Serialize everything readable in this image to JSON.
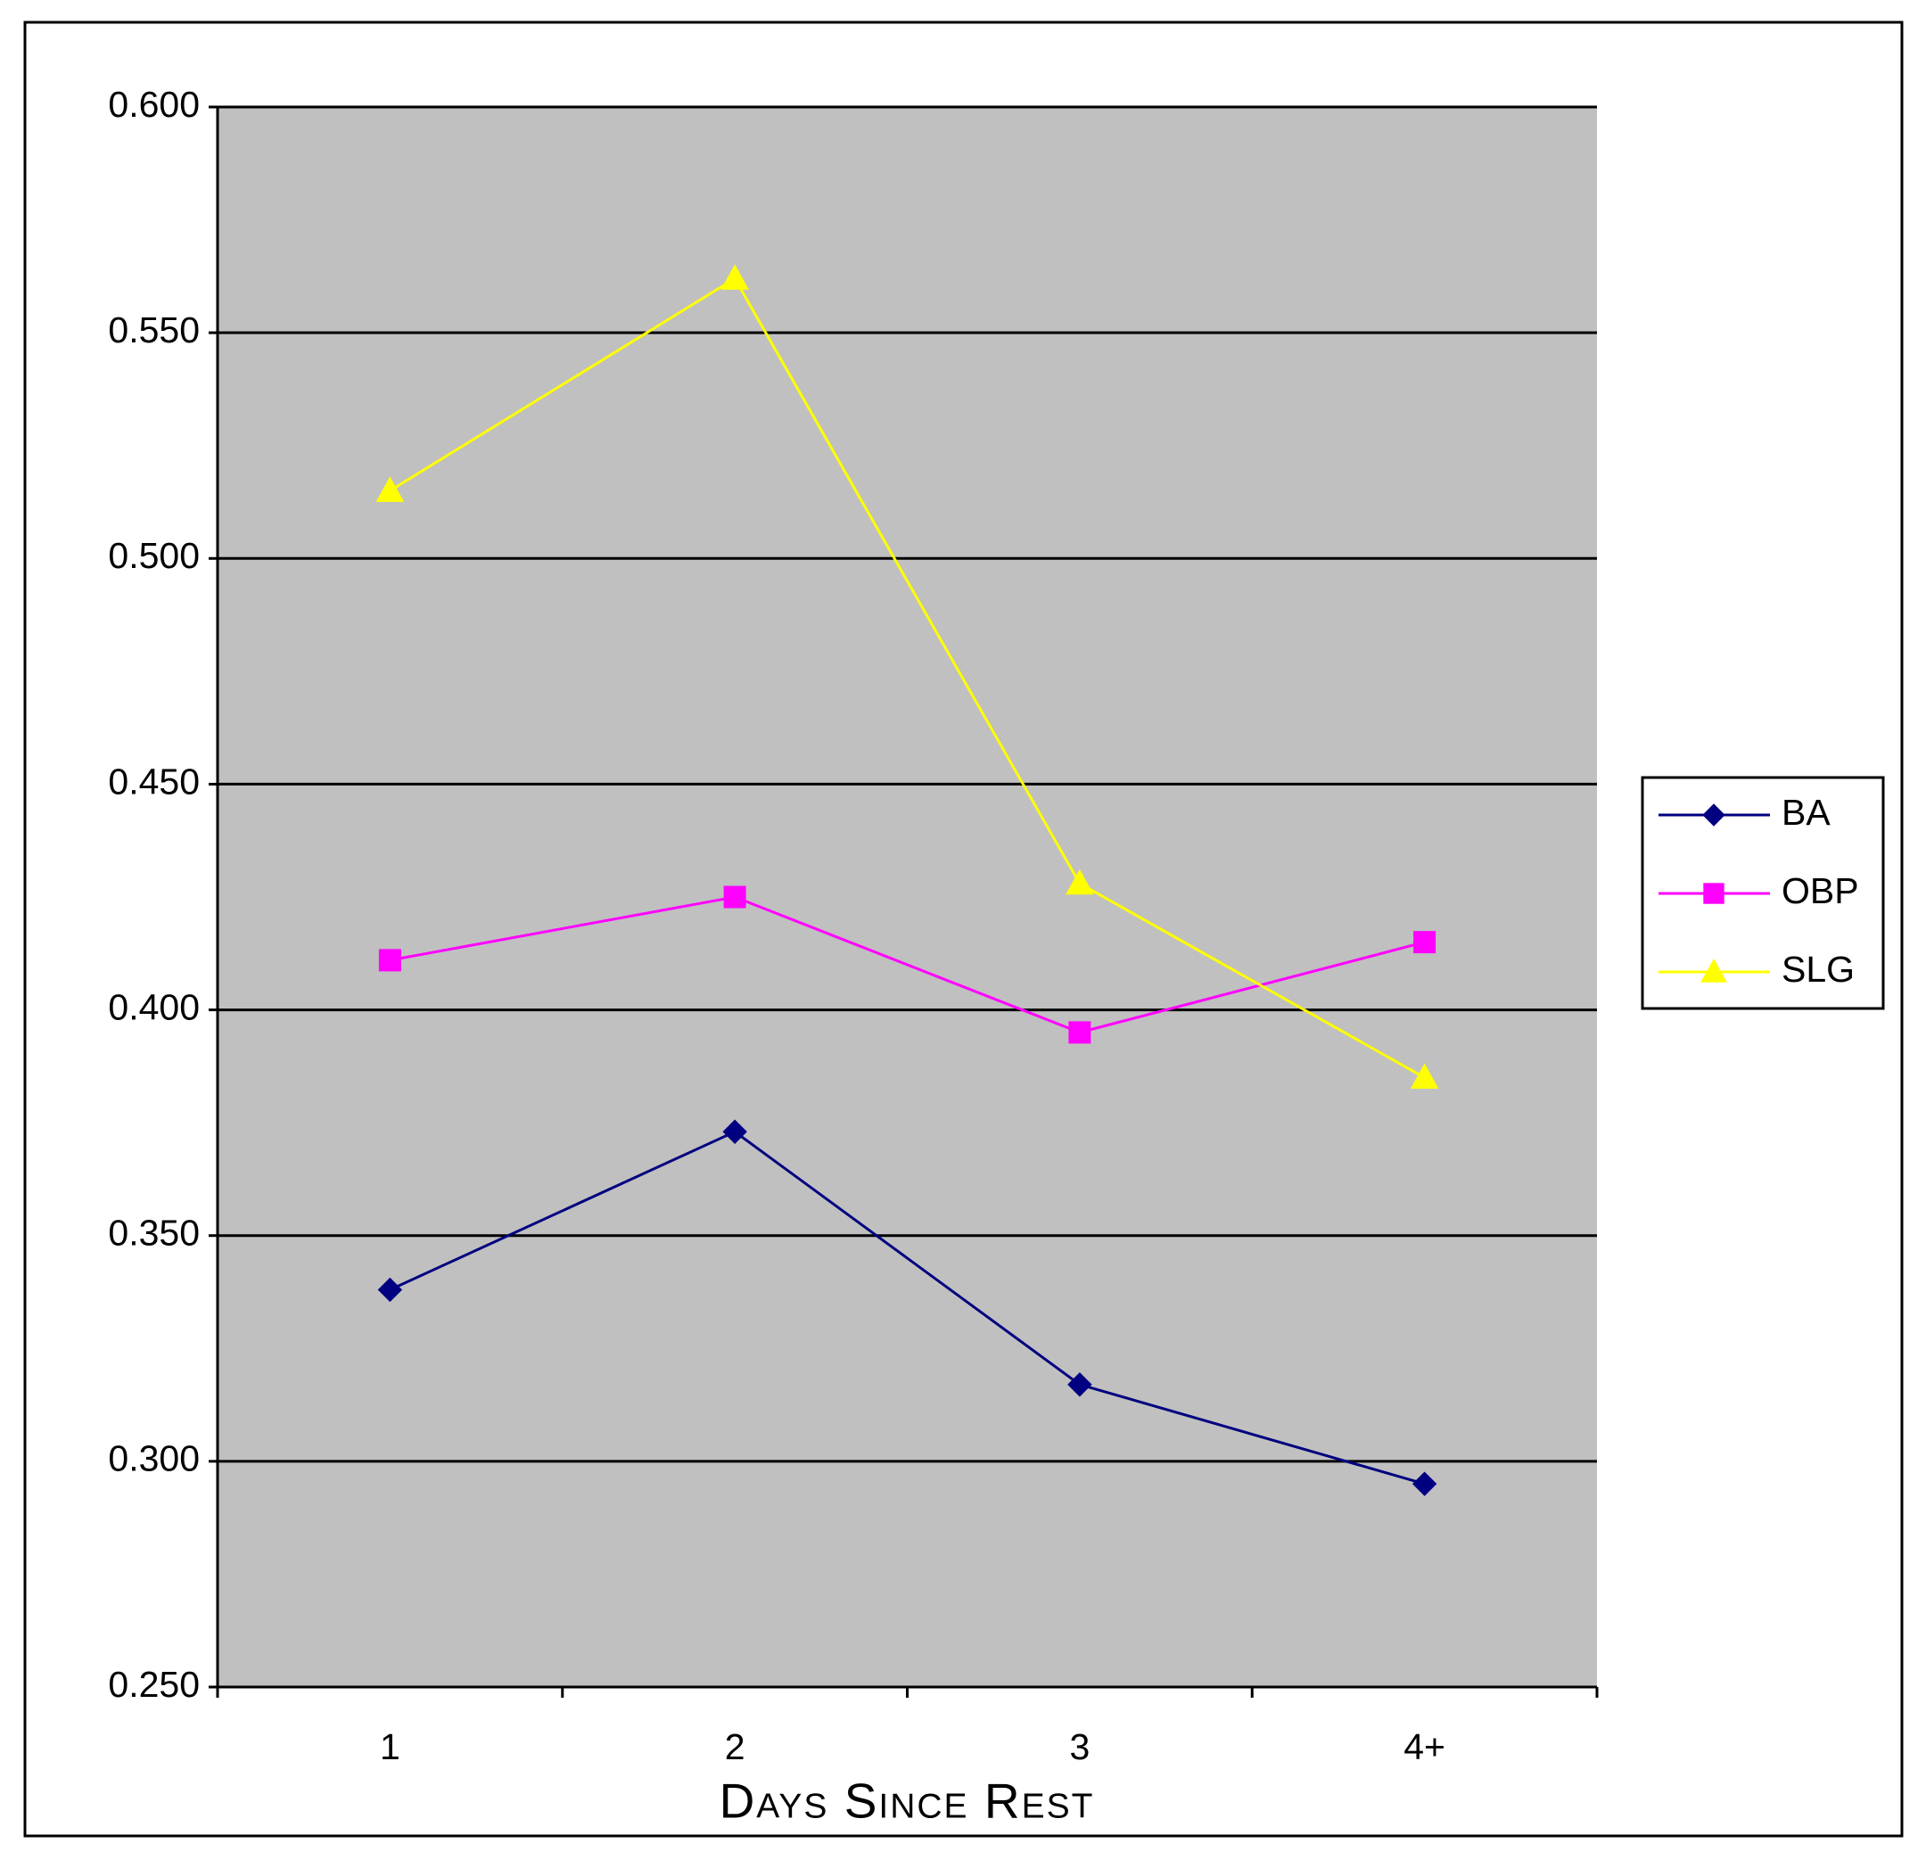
{
  "chart_data": {
    "type": "line",
    "x_label": "Days Since Rest",
    "categories": [
      "1",
      "2",
      "3",
      "4+"
    ],
    "series": [
      {
        "name": "BA",
        "color": "#000080",
        "marker": "diamond",
        "values": [
          0.338,
          0.373,
          0.317,
          0.295
        ]
      },
      {
        "name": "OBP",
        "color": "#ff00ff",
        "marker": "square",
        "values": [
          0.411,
          0.425,
          0.395,
          0.415
        ]
      },
      {
        "name": "SLG",
        "color": "#ffff00",
        "marker": "triangle",
        "values": [
          0.515,
          0.562,
          0.428,
          0.385
        ]
      }
    ],
    "ylim": [
      0.25,
      0.6
    ],
    "yticks": [
      {
        "value": 0.25,
        "label": "0.250"
      },
      {
        "value": 0.3,
        "label": "0.300"
      },
      {
        "value": 0.35,
        "label": "0.350"
      },
      {
        "value": 0.4,
        "label": "0.400"
      },
      {
        "value": 0.45,
        "label": "0.450"
      },
      {
        "value": 0.5,
        "label": "0.500"
      },
      {
        "value": 0.55,
        "label": "0.550"
      },
      {
        "value": 0.6,
        "label": "0.600"
      }
    ],
    "grid": true,
    "plot_background": "#c0c0c0",
    "legend_position": "right"
  }
}
